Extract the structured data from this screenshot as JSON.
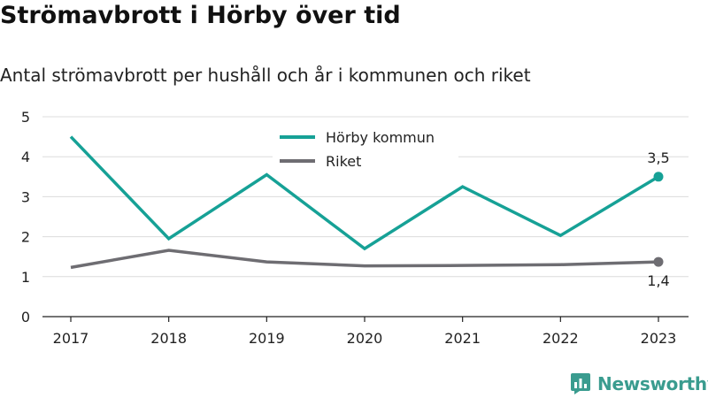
{
  "title": "Strömavbrott i Hörby över tid",
  "subtitle": "Antal strömavbrott per hushåll och år i kommunen och riket",
  "brand": "Newsworthy",
  "colors": {
    "horby": "#16a196",
    "riket": "#6e6d72",
    "grid": "#dcdcdc",
    "brand": "#3a9c8f"
  },
  "icons": {
    "brand_logo": "newsworthy-logo-icon"
  },
  "chart_data": {
    "type": "line",
    "categories": [
      "2017",
      "2018",
      "2019",
      "2020",
      "2021",
      "2022",
      "2023"
    ],
    "yticks": [
      "0",
      "1",
      "2",
      "3",
      "4",
      "5"
    ],
    "ylim": [
      0,
      5
    ],
    "grid": true,
    "legend": "top-center",
    "series": [
      {
        "name": "Hörby kommun",
        "values": [
          4.5,
          1.95,
          3.55,
          1.7,
          3.25,
          2.03,
          3.5
        ],
        "color": "#16a196",
        "end_label": "3,5"
      },
      {
        "name": "Riket",
        "values": [
          1.23,
          1.66,
          1.37,
          1.27,
          1.28,
          1.3,
          1.37
        ],
        "color": "#6e6d72",
        "end_label": "1,4"
      }
    ]
  }
}
